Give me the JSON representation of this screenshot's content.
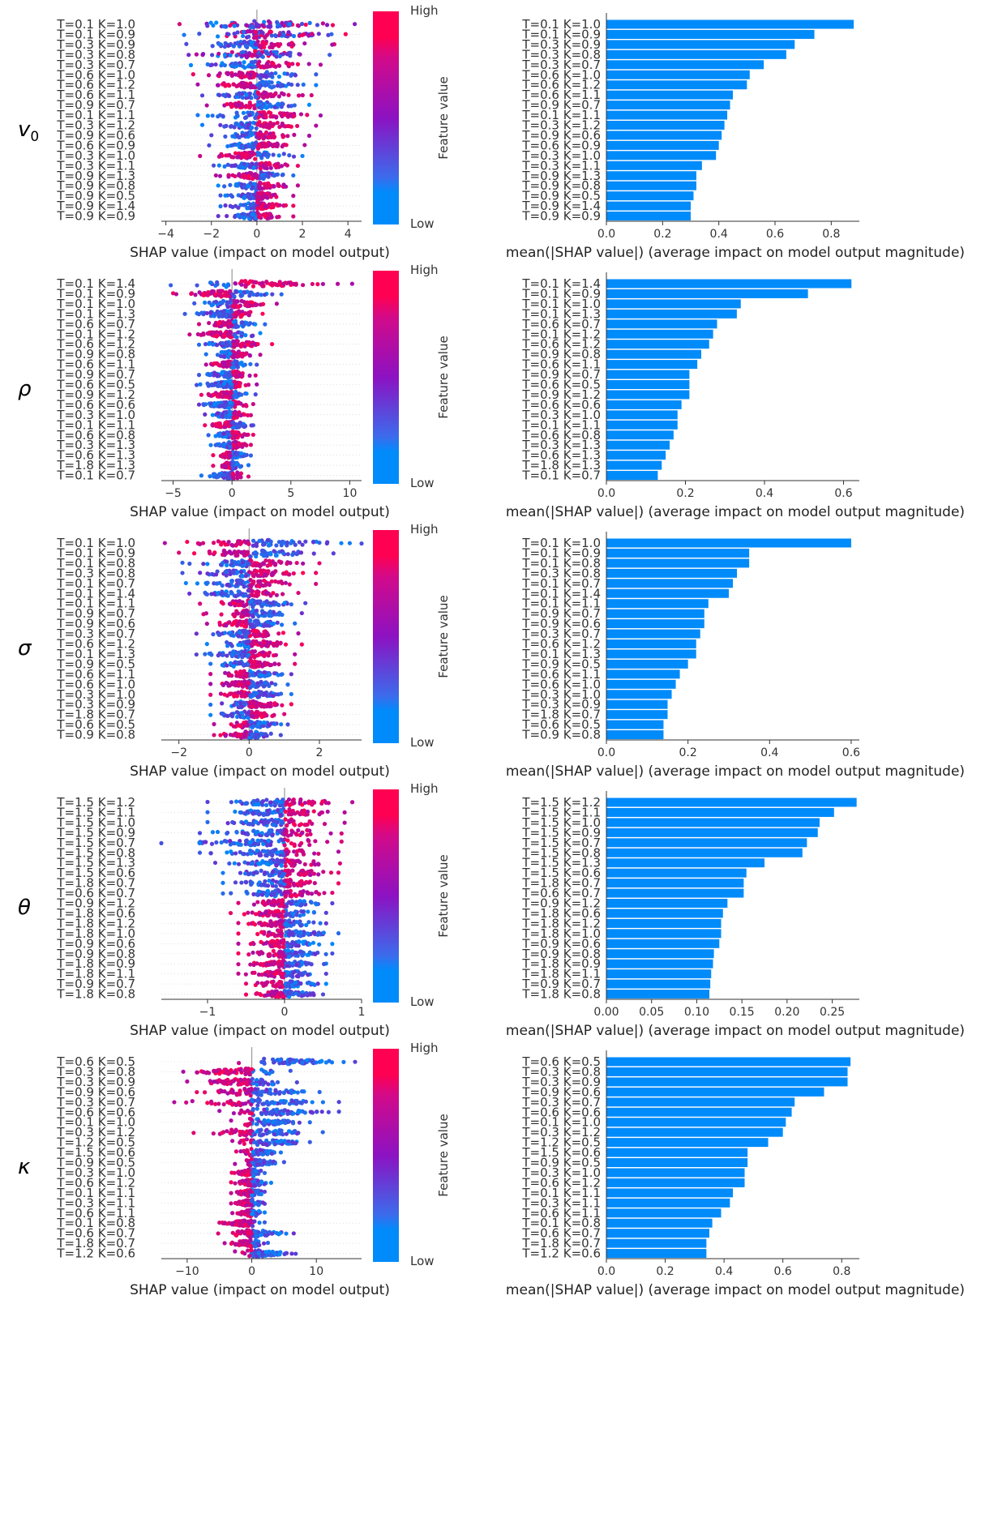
{
  "colors": {
    "low": "#008bfb",
    "mid": "#8c12c2",
    "high": "#ff0052",
    "bar": "#008bfb",
    "axis": "#333333",
    "tick_text": "#333333",
    "gridline": "#cccccc"
  },
  "colorbar": {
    "high_label": "High",
    "low_label": "Low",
    "title": "Feature value"
  },
  "chart_data": [
    {
      "row_label": "v0",
      "row_label_sub": "0",
      "row_label_main": "v",
      "summary": {
        "type": "scatter",
        "title": "",
        "xlabel": "SHAP value (impact on model output)",
        "xlim": [
          -4.2,
          4.6
        ],
        "xticks": [
          -4,
          -2,
          0,
          2,
          4
        ],
        "features": [
          "T=0.1 K=1.0",
          "T=0.1 K=0.9",
          "T=0.3 K=0.9",
          "T=0.3 K=0.8",
          "T=0.3 K=0.7",
          "T=0.6 K=1.0",
          "T=0.6 K=1.2",
          "T=0.6 K=1.1",
          "T=0.9 K=0.7",
          "T=0.1 K=1.1",
          "T=0.3 K=1.2",
          "T=0.9 K=0.6",
          "T=0.6 K=0.9",
          "T=0.3 K=1.0",
          "T=0.3 K=1.1",
          "T=0.9 K=1.3",
          "T=0.9 K=0.8",
          "T=0.9 K=0.5",
          "T=0.9 K=1.4",
          "T=0.9 K=0.9"
        ],
        "min_shap": [
          -3.4,
          -3.2,
          -3.1,
          -3.0,
          -2.9,
          -2.8,
          -2.6,
          -2.4,
          -2.2,
          -2.6,
          -2.4,
          -2.0,
          -2.1,
          -2.5,
          -1.9,
          -1.8,
          -1.7,
          -1.6,
          -1.6,
          -1.7
        ],
        "max_shap": [
          4.3,
          3.9,
          3.4,
          3.2,
          2.8,
          2.6,
          2.6,
          2.4,
          2.3,
          2.8,
          2.6,
          2.3,
          2.1,
          2.0,
          1.8,
          1.6,
          1.8,
          1.6,
          1.6,
          1.6
        ],
        "high_side": [
          "both",
          "both",
          "right",
          "both",
          "right",
          "left",
          "left",
          "right",
          "left",
          "right",
          "right",
          "right",
          "right",
          "left",
          "right",
          "left",
          "right",
          "right",
          "right",
          "right"
        ]
      },
      "importance": {
        "type": "bar",
        "xlabel": "mean(|SHAP value|) (average impact on model output magnitude)",
        "xlim": [
          0,
          0.9
        ],
        "xticks": [
          0.0,
          0.2,
          0.4,
          0.6,
          0.8
        ],
        "xtick_labels": [
          "0.0",
          "0.2",
          "0.4",
          "0.6",
          "0.8"
        ],
        "categories": [
          "T=0.1 K=1.0",
          "T=0.1 K=0.9",
          "T=0.3 K=0.9",
          "T=0.3 K=0.8",
          "T=0.3 K=0.7",
          "T=0.6 K=1.0",
          "T=0.6 K=1.2",
          "T=0.6 K=1.1",
          "T=0.9 K=0.7",
          "T=0.1 K=1.1",
          "T=0.3 K=1.2",
          "T=0.9 K=0.6",
          "T=0.6 K=0.9",
          "T=0.3 K=1.0",
          "T=0.3 K=1.1",
          "T=0.9 K=1.3",
          "T=0.9 K=0.8",
          "T=0.9 K=0.5",
          "T=0.9 K=1.4",
          "T=0.9 K=0.9"
        ],
        "values": [
          0.88,
          0.74,
          0.67,
          0.64,
          0.56,
          0.51,
          0.5,
          0.45,
          0.44,
          0.43,
          0.42,
          0.41,
          0.4,
          0.39,
          0.34,
          0.32,
          0.32,
          0.31,
          0.3,
          0.3
        ]
      }
    },
    {
      "row_label": "ρ",
      "row_label_sub": "",
      "row_label_main": "ρ",
      "summary": {
        "type": "scatter",
        "title": "",
        "xlabel": "SHAP value (impact on model output)",
        "xlim": [
          -6,
          11
        ],
        "xticks": [
          -5,
          0,
          5,
          10
        ],
        "features": [
          "T=0.1 K=1.4",
          "T=0.1 K=0.9",
          "T=0.1 K=1.0",
          "T=0.1 K=1.3",
          "T=0.6 K=0.7",
          "T=0.1 K=1.2",
          "T=0.6 K=1.2",
          "T=0.9 K=0.8",
          "T=0.6 K=1.1",
          "T=0.9 K=0.7",
          "T=0.6 K=0.5",
          "T=0.9 K=1.2",
          "T=0.6 K=0.6",
          "T=0.3 K=1.0",
          "T=0.1 K=1.1",
          "T=0.6 K=0.8",
          "T=0.3 K=1.3",
          "T=0.6 K=1.3",
          "T=1.8 K=1.3",
          "T=0.1 K=0.7"
        ],
        "min_shap": [
          -5.2,
          -5.0,
          -3.2,
          -4.0,
          -2.8,
          -3.6,
          -2.8,
          -2.2,
          -2.2,
          -2.8,
          -3.0,
          -2.6,
          -2.8,
          -2.3,
          -2.3,
          -2.0,
          -1.8,
          -1.6,
          -1.6,
          -2.6
        ],
        "max_shap": [
          10.2,
          4.2,
          3.8,
          2.6,
          2.8,
          2.4,
          3.4,
          2.4,
          2.1,
          2.0,
          2.1,
          2.0,
          1.8,
          1.6,
          1.8,
          1.8,
          1.6,
          1.6,
          1.4,
          1.4
        ],
        "high_side": [
          "right",
          "left",
          "right",
          "right",
          "left",
          "left",
          "right",
          "right",
          "left",
          "right",
          "right",
          "left",
          "right",
          "right",
          "left",
          "right",
          "right",
          "left",
          "left",
          "right"
        ]
      },
      "importance": {
        "type": "bar",
        "xlabel": "mean(|SHAP value|) (average impact on model output magnitude)",
        "xlim": [
          0,
          0.64
        ],
        "xticks": [
          0.0,
          0.2,
          0.4,
          0.6
        ],
        "xtick_labels": [
          "0.0",
          "0.2",
          "0.4",
          "0.6"
        ],
        "categories": [
          "T=0.1 K=1.4",
          "T=0.1 K=0.9",
          "T=0.1 K=1.0",
          "T=0.1 K=1.3",
          "T=0.6 K=0.7",
          "T=0.1 K=1.2",
          "T=0.6 K=1.2",
          "T=0.9 K=0.8",
          "T=0.6 K=1.1",
          "T=0.9 K=0.7",
          "T=0.6 K=0.5",
          "T=0.9 K=1.2",
          "T=0.6 K=0.6",
          "T=0.3 K=1.0",
          "T=0.1 K=1.1",
          "T=0.6 K=0.8",
          "T=0.3 K=1.3",
          "T=0.6 K=1.3",
          "T=1.8 K=1.3",
          "T=0.1 K=0.7"
        ],
        "values": [
          0.62,
          0.51,
          0.34,
          0.33,
          0.28,
          0.27,
          0.26,
          0.24,
          0.23,
          0.21,
          0.21,
          0.21,
          0.19,
          0.18,
          0.18,
          0.17,
          0.16,
          0.15,
          0.14,
          0.13
        ]
      }
    },
    {
      "row_label": "σ",
      "row_label_sub": "",
      "row_label_main": "σ",
      "summary": {
        "type": "scatter",
        "title": "",
        "xlabel": "SHAP value (impact on model output)",
        "xlim": [
          -2.5,
          3.2
        ],
        "xticks": [
          -2,
          0,
          2
        ],
        "features": [
          "T=0.1 K=1.0",
          "T=0.1 K=0.9",
          "T=0.1 K=0.8",
          "T=0.3 K=0.8",
          "T=0.1 K=0.7",
          "T=0.1 K=1.4",
          "T=0.1 K=1.1",
          "T=0.9 K=0.7",
          "T=0.9 K=0.6",
          "T=0.3 K=0.7",
          "T=0.6 K=1.2",
          "T=0.1 K=1.3",
          "T=0.9 K=0.5",
          "T=0.6 K=1.1",
          "T=0.6 K=1.0",
          "T=0.3 K=1.0",
          "T=0.3 K=0.9",
          "T=1.8 K=0.7",
          "T=0.6 K=0.5",
          "T=0.9 K=0.8"
        ],
        "min_shap": [
          -2.4,
          -2.0,
          -1.9,
          -1.9,
          -1.8,
          -1.7,
          -1.4,
          -1.3,
          -1.2,
          -1.5,
          -1.2,
          -1.5,
          -1.1,
          -1.1,
          -1.1,
          -1.1,
          -1.1,
          -1.1,
          -1.0,
          -1.0
        ],
        "max_shap": [
          3.2,
          2.4,
          2.0,
          1.9,
          1.9,
          1.4,
          1.6,
          1.5,
          1.3,
          1.4,
          1.5,
          1.3,
          1.3,
          1.2,
          1.1,
          1.2,
          1.2,
          1.0,
          1.1,
          0.9
        ],
        "high_side": [
          "left",
          "left",
          "right",
          "right",
          "right",
          "right",
          "left",
          "left",
          "left",
          "right",
          "right",
          "right",
          "right",
          "left",
          "left",
          "left",
          "right",
          "right",
          "left",
          "left"
        ]
      },
      "importance": {
        "type": "bar",
        "xlabel": "mean(|SHAP value|) (average impact on model output magnitude)",
        "xlim": [
          0,
          0.62
        ],
        "xticks": [
          0.0,
          0.2,
          0.4,
          0.6
        ],
        "xtick_labels": [
          "0.0",
          "0.2",
          "0.4",
          "0.6"
        ],
        "categories": [
          "T=0.1 K=1.0",
          "T=0.1 K=0.9",
          "T=0.1 K=0.8",
          "T=0.3 K=0.8",
          "T=0.1 K=0.7",
          "T=0.1 K=1.4",
          "T=0.1 K=1.1",
          "T=0.9 K=0.7",
          "T=0.9 K=0.6",
          "T=0.3 K=0.7",
          "T=0.6 K=1.2",
          "T=0.1 K=1.3",
          "T=0.9 K=0.5",
          "T=0.6 K=1.1",
          "T=0.6 K=1.0",
          "T=0.3 K=1.0",
          "T=0.3 K=0.9",
          "T=1.8 K=0.7",
          "T=0.6 K=0.5",
          "T=0.9 K=0.8"
        ],
        "values": [
          0.6,
          0.35,
          0.35,
          0.32,
          0.31,
          0.3,
          0.25,
          0.24,
          0.24,
          0.23,
          0.22,
          0.22,
          0.2,
          0.18,
          0.17,
          0.16,
          0.15,
          0.15,
          0.14,
          0.14
        ]
      }
    },
    {
      "row_label": "θ",
      "row_label_sub": "",
      "row_label_main": "θ",
      "summary": {
        "type": "scatter",
        "title": "",
        "xlabel": "SHAP value (impact on model output)",
        "xlim": [
          -1.6,
          1.0
        ],
        "xticks": [
          -1,
          0,
          1
        ],
        "features": [
          "T=1.5 K=1.2",
          "T=1.5 K=1.1",
          "T=1.5 K=1.0",
          "T=1.5 K=0.9",
          "T=1.5 K=0.7",
          "T=1.5 K=0.8",
          "T=1.5 K=1.3",
          "T=1.5 K=0.6",
          "T=1.8 K=0.7",
          "T=0.6 K=0.7",
          "T=0.9 K=1.2",
          "T=1.8 K=0.6",
          "T=1.8 K=1.2",
          "T=1.8 K=1.0",
          "T=0.9 K=0.6",
          "T=0.9 K=0.8",
          "T=1.8 K=0.9",
          "T=1.8 K=1.1",
          "T=0.9 K=0.7",
          "T=1.8 K=0.8"
        ],
        "min_shap": [
          -1.0,
          -1.0,
          -1.0,
          -1.1,
          -1.6,
          -1.1,
          -0.9,
          -0.8,
          -0.8,
          -0.8,
          -0.6,
          -0.7,
          -0.6,
          -0.6,
          -0.6,
          -0.6,
          -0.6,
          -0.6,
          -0.5,
          -0.5
        ],
        "max_shap": [
          0.88,
          0.78,
          0.78,
          0.74,
          0.74,
          0.7,
          0.72,
          0.7,
          0.7,
          0.62,
          0.62,
          0.54,
          0.54,
          0.7,
          0.62,
          0.62,
          0.54,
          0.54,
          0.54,
          0.5
        ],
        "high_side": [
          "right",
          "right",
          "right",
          "right",
          "right",
          "right",
          "right",
          "right",
          "right",
          "right",
          "left",
          "left",
          "left",
          "left",
          "left",
          "left",
          "left",
          "left",
          "left",
          "left"
        ]
      },
      "importance": {
        "type": "bar",
        "xlabel": "mean(|SHAP value|) (average impact on model output magnitude)",
        "xlim": [
          0,
          0.28
        ],
        "xticks": [
          0.0,
          0.05,
          0.1,
          0.15,
          0.2,
          0.25
        ],
        "xtick_labels": [
          "0.00",
          "0.05",
          "0.10",
          "0.15",
          "0.20",
          "0.25"
        ],
        "categories": [
          "T=1.5 K=1.2",
          "T=1.5 K=1.1",
          "T=1.5 K=1.0",
          "T=1.5 K=0.9",
          "T=1.5 K=0.7",
          "T=1.5 K=0.8",
          "T=1.5 K=1.3",
          "T=1.5 K=0.6",
          "T=1.8 K=0.7",
          "T=0.6 K=0.7",
          "T=0.9 K=1.2",
          "T=1.8 K=0.6",
          "T=1.8 K=1.2",
          "T=1.8 K=1.0",
          "T=0.9 K=0.6",
          "T=0.9 K=0.8",
          "T=1.8 K=0.9",
          "T=1.8 K=1.1",
          "T=0.9 K=0.7",
          "T=1.8 K=0.8"
        ],
        "values": [
          0.277,
          0.252,
          0.236,
          0.234,
          0.222,
          0.217,
          0.175,
          0.155,
          0.152,
          0.152,
          0.134,
          0.129,
          0.127,
          0.127,
          0.125,
          0.119,
          0.118,
          0.116,
          0.115,
          0.114
        ]
      }
    },
    {
      "row_label": "κ",
      "row_label_sub": "",
      "row_label_main": "κ",
      "summary": {
        "type": "scatter",
        "title": "",
        "xlabel": "SHAP value (impact on model output)",
        "xlim": [
          -14,
          17
        ],
        "xticks": [
          -10,
          0,
          10
        ],
        "features": [
          "T=0.6 K=0.5",
          "T=0.3 K=0.8",
          "T=0.3 K=0.9",
          "T=0.9 K=0.6",
          "T=0.3 K=0.7",
          "T=0.6 K=0.6",
          "T=0.1 K=1.0",
          "T=0.3 K=1.2",
          "T=1.2 K=0.5",
          "T=1.5 K=0.6",
          "T=0.9 K=0.5",
          "T=0.3 K=1.0",
          "T=0.6 K=1.2",
          "T=0.1 K=1.1",
          "T=0.3 K=1.1",
          "T=0.6 K=1.1",
          "T=0.1 K=0.8",
          "T=0.6 K=0.7",
          "T=1.8 K=0.7",
          "T=1.2 K=0.6"
        ],
        "min_shap": [
          -2.0,
          -10.6,
          -10.0,
          -8.5,
          -12.0,
          -5.0,
          -3.2,
          -9.0,
          -3.0,
          -2.4,
          -2.6,
          -3.1,
          -3.2,
          -3.2,
          -3.2,
          -3.0,
          -5.0,
          -5.2,
          -4.2,
          -2.6
        ],
        "max_shap": [
          16.0,
          6.0,
          7.0,
          10.5,
          13.5,
          13.5,
          9.0,
          11.0,
          9.0,
          4.5,
          5.0,
          2.0,
          3.0,
          2.0,
          2.0,
          2.0,
          2.0,
          6.5,
          2.5,
          6.8
        ],
        "high_side": [
          "left",
          "left",
          "left",
          "left",
          "left",
          "left",
          "left",
          "left",
          "left",
          "left",
          "left",
          "left",
          "left",
          "left",
          "left",
          "left",
          "left",
          "left",
          "left",
          "left"
        ]
      },
      "importance": {
        "type": "bar",
        "xlabel": "mean(|SHAP value|) (average impact on model output magnitude)",
        "xlim": [
          0,
          0.86
        ],
        "xticks": [
          0.0,
          0.2,
          0.4,
          0.6,
          0.8
        ],
        "xtick_labels": [
          "0.0",
          "0.2",
          "0.4",
          "0.6",
          "0.8"
        ],
        "categories": [
          "T=0.6 K=0.5",
          "T=0.3 K=0.8",
          "T=0.3 K=0.9",
          "T=0.9 K=0.6",
          "T=0.3 K=0.7",
          "T=0.6 K=0.6",
          "T=0.1 K=1.0",
          "T=0.3 K=1.2",
          "T=1.2 K=0.5",
          "T=1.5 K=0.6",
          "T=0.9 K=0.5",
          "T=0.3 K=1.0",
          "T=0.6 K=1.2",
          "T=0.1 K=1.1",
          "T=0.3 K=1.1",
          "T=0.6 K=1.1",
          "T=0.1 K=0.8",
          "T=0.6 K=0.7",
          "T=1.8 K=0.7",
          "T=1.2 K=0.6"
        ],
        "values": [
          0.83,
          0.82,
          0.82,
          0.74,
          0.64,
          0.63,
          0.61,
          0.6,
          0.55,
          0.48,
          0.48,
          0.47,
          0.47,
          0.43,
          0.42,
          0.39,
          0.36,
          0.35,
          0.34,
          0.34
        ]
      }
    }
  ]
}
